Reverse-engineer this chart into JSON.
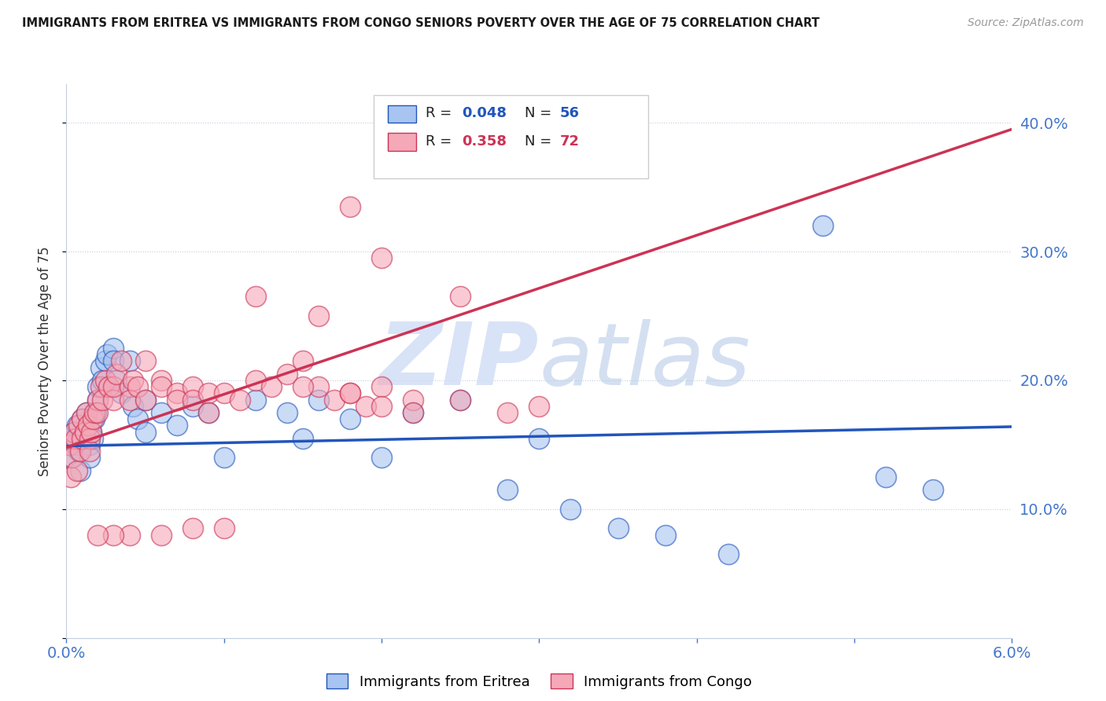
{
  "title": "IMMIGRANTS FROM ERITREA VS IMMIGRANTS FROM CONGO SENIORS POVERTY OVER THE AGE OF 75 CORRELATION CHART",
  "source": "Source: ZipAtlas.com",
  "ylabel": "Seniors Poverty Over the Age of 75",
  "right_yticks": [
    "40.0%",
    "30.0%",
    "20.0%",
    "10.0%"
  ],
  "right_ytick_vals": [
    0.4,
    0.3,
    0.2,
    0.1
  ],
  "legend1_r": "R = 0.048",
  "legend1_n": "N = 56",
  "legend2_r": "R = 0.358",
  "legend2_n": "N = 72",
  "color_eritrea": "#a8c4f0",
  "color_congo": "#f5a8b8",
  "color_eritrea_line": "#2255bb",
  "color_congo_line": "#cc3355",
  "color_axis": "#4477cc",
  "watermark_color": "#d0ddf5",
  "background_color": "#ffffff",
  "xlim": [
    0.0,
    0.06
  ],
  "ylim": [
    0.0,
    0.43
  ],
  "eritrea_x": [
    0.0002,
    0.0003,
    0.0005,
    0.0006,
    0.0007,
    0.0008,
    0.0009,
    0.001,
    0.001,
    0.0012,
    0.0013,
    0.0014,
    0.0015,
    0.0015,
    0.0016,
    0.0017,
    0.0018,
    0.0019,
    0.002,
    0.002,
    0.0022,
    0.0023,
    0.0025,
    0.0026,
    0.0027,
    0.003,
    0.003,
    0.0032,
    0.0035,
    0.004,
    0.0042,
    0.0045,
    0.005,
    0.005,
    0.006,
    0.007,
    0.008,
    0.009,
    0.01,
    0.012,
    0.014,
    0.015,
    0.016,
    0.018,
    0.02,
    0.022,
    0.025,
    0.028,
    0.03,
    0.032,
    0.035,
    0.038,
    0.042,
    0.048,
    0.052,
    0.055
  ],
  "eritrea_y": [
    0.155,
    0.14,
    0.16,
    0.15,
    0.165,
    0.145,
    0.13,
    0.155,
    0.17,
    0.16,
    0.175,
    0.165,
    0.15,
    0.14,
    0.16,
    0.155,
    0.17,
    0.175,
    0.185,
    0.195,
    0.21,
    0.2,
    0.215,
    0.22,
    0.195,
    0.225,
    0.215,
    0.2,
    0.19,
    0.215,
    0.18,
    0.17,
    0.185,
    0.16,
    0.175,
    0.165,
    0.18,
    0.175,
    0.14,
    0.185,
    0.175,
    0.155,
    0.185,
    0.17,
    0.14,
    0.175,
    0.185,
    0.115,
    0.155,
    0.1,
    0.085,
    0.08,
    0.065,
    0.32,
    0.125,
    0.115
  ],
  "congo_x": [
    0.0002,
    0.0003,
    0.0004,
    0.0005,
    0.0006,
    0.0007,
    0.0008,
    0.0009,
    0.001,
    0.001,
    0.0012,
    0.0013,
    0.0014,
    0.0015,
    0.0015,
    0.0016,
    0.0017,
    0.0018,
    0.002,
    0.002,
    0.0022,
    0.0023,
    0.0025,
    0.0027,
    0.003,
    0.003,
    0.0032,
    0.0035,
    0.004,
    0.004,
    0.0042,
    0.0045,
    0.005,
    0.005,
    0.006,
    0.006,
    0.007,
    0.007,
    0.008,
    0.008,
    0.009,
    0.009,
    0.01,
    0.011,
    0.012,
    0.013,
    0.014,
    0.015,
    0.016,
    0.017,
    0.018,
    0.019,
    0.02,
    0.022,
    0.015,
    0.018,
    0.02,
    0.022,
    0.025,
    0.028,
    0.03,
    0.025,
    0.02,
    0.018,
    0.016,
    0.012,
    0.01,
    0.008,
    0.006,
    0.004,
    0.003,
    0.002
  ],
  "congo_y": [
    0.15,
    0.125,
    0.14,
    0.16,
    0.155,
    0.13,
    0.165,
    0.145,
    0.155,
    0.17,
    0.16,
    0.175,
    0.165,
    0.155,
    0.145,
    0.16,
    0.17,
    0.175,
    0.185,
    0.175,
    0.195,
    0.185,
    0.2,
    0.195,
    0.185,
    0.195,
    0.205,
    0.215,
    0.195,
    0.185,
    0.2,
    0.195,
    0.215,
    0.185,
    0.2,
    0.195,
    0.19,
    0.185,
    0.195,
    0.185,
    0.19,
    0.175,
    0.19,
    0.185,
    0.2,
    0.195,
    0.205,
    0.215,
    0.195,
    0.185,
    0.19,
    0.18,
    0.195,
    0.185,
    0.195,
    0.19,
    0.18,
    0.175,
    0.185,
    0.175,
    0.18,
    0.265,
    0.295,
    0.335,
    0.25,
    0.265,
    0.085,
    0.085,
    0.08,
    0.08,
    0.08,
    0.08
  ],
  "eritrea_line_x0": 0.0,
  "eritrea_line_x1": 0.06,
  "eritrea_line_y0": 0.149,
  "eritrea_line_y1": 0.164,
  "congo_line_x0": 0.0,
  "congo_line_x1": 0.06,
  "congo_line_y0": 0.148,
  "congo_line_y1": 0.395
}
